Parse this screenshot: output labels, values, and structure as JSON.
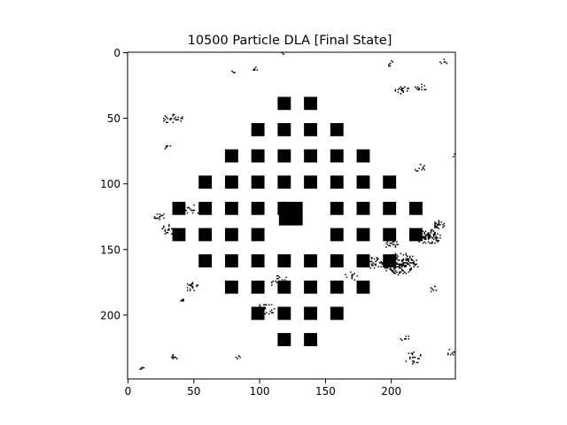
{
  "chart_data": {
    "type": "heatmap",
    "title": "10500 Particle DLA [Final State]",
    "xlabel": "",
    "ylabel": "",
    "xlim": [
      0,
      249
    ],
    "ylim": [
      249,
      0
    ],
    "x_ticks": [
      0,
      50,
      100,
      150,
      200
    ],
    "y_ticks": [
      0,
      50,
      100,
      150,
      200
    ],
    "x_tick_labels": [
      "0",
      "50",
      "100",
      "150",
      "200"
    ],
    "y_tick_labels": [
      "0",
      "50",
      "100",
      "150",
      "200"
    ],
    "colormap": [
      "#ffffff",
      "#000000"
    ],
    "grid": false,
    "seed_block": {
      "x": 124,
      "y": 123,
      "w": 18,
      "h": 18
    },
    "obstacle_block_size": 10,
    "obstacle_blocks": [
      [
        114,
        34
      ],
      [
        134,
        34
      ],
      [
        94,
        54
      ],
      [
        114,
        54
      ],
      [
        134,
        54
      ],
      [
        154,
        54
      ],
      [
        74,
        74
      ],
      [
        94,
        74
      ],
      [
        114,
        74
      ],
      [
        134,
        74
      ],
      [
        154,
        74
      ],
      [
        174,
        74
      ],
      [
        54,
        94
      ],
      [
        74,
        94
      ],
      [
        94,
        94
      ],
      [
        114,
        94
      ],
      [
        134,
        94
      ],
      [
        154,
        94
      ],
      [
        174,
        94
      ],
      [
        194,
        94
      ],
      [
        34,
        114
      ],
      [
        54,
        114
      ],
      [
        74,
        114
      ],
      [
        94,
        114
      ],
      [
        114,
        114
      ],
      [
        154,
        114
      ],
      [
        174,
        114
      ],
      [
        194,
        114
      ],
      [
        214,
        114
      ],
      [
        34,
        134
      ],
      [
        54,
        134
      ],
      [
        74,
        134
      ],
      [
        94,
        134
      ],
      [
        154,
        134
      ],
      [
        174,
        134
      ],
      [
        194,
        134
      ],
      [
        214,
        134
      ],
      [
        54,
        154
      ],
      [
        74,
        154
      ],
      [
        94,
        154
      ],
      [
        114,
        154
      ],
      [
        134,
        154
      ],
      [
        154,
        154
      ],
      [
        174,
        154
      ],
      [
        194,
        154
      ],
      [
        74,
        174
      ],
      [
        94,
        174
      ],
      [
        114,
        174
      ],
      [
        134,
        174
      ],
      [
        154,
        174
      ],
      [
        174,
        174
      ],
      [
        94,
        194
      ],
      [
        114,
        194
      ],
      [
        134,
        194
      ],
      [
        154,
        194
      ],
      [
        114,
        214
      ],
      [
        134,
        214
      ]
    ],
    "particle_clusters": [
      {
        "x": 207,
        "y": 161,
        "spread": 14,
        "count": 180
      },
      {
        "x": 228,
        "y": 140,
        "spread": 10,
        "count": 90
      },
      {
        "x": 186,
        "y": 160,
        "spread": 8,
        "count": 40
      },
      {
        "x": 236,
        "y": 131,
        "spread": 5,
        "count": 30
      },
      {
        "x": 115,
        "y": 175,
        "spread": 9,
        "count": 35
      },
      {
        "x": 104,
        "y": 195,
        "spread": 9,
        "count": 25
      },
      {
        "x": 100,
        "y": 178,
        "spread": 6,
        "count": 15
      },
      {
        "x": 48,
        "y": 178,
        "spread": 6,
        "count": 20
      },
      {
        "x": 42,
        "y": 188,
        "spread": 3,
        "count": 6
      },
      {
        "x": 30,
        "y": 135,
        "spread": 6,
        "count": 22
      },
      {
        "x": 48,
        "y": 120,
        "spread": 7,
        "count": 16
      },
      {
        "x": 24,
        "y": 125,
        "spread": 5,
        "count": 16
      },
      {
        "x": 33,
        "y": 50,
        "spread": 7,
        "count": 20
      },
      {
        "x": 40,
        "y": 50,
        "spread": 5,
        "count": 10
      },
      {
        "x": 208,
        "y": 28,
        "spread": 6,
        "count": 22
      },
      {
        "x": 222,
        "y": 27,
        "spread": 5,
        "count": 14
      },
      {
        "x": 199,
        "y": 8,
        "spread": 3,
        "count": 8
      },
      {
        "x": 240,
        "y": 7,
        "spread": 3,
        "count": 6
      },
      {
        "x": 96,
        "y": 13,
        "spread": 3,
        "count": 8
      },
      {
        "x": 35,
        "y": 232,
        "spread": 3,
        "count": 10
      },
      {
        "x": 10,
        "y": 240,
        "spread": 2,
        "count": 6
      },
      {
        "x": 216,
        "y": 232,
        "spread": 8,
        "count": 24
      },
      {
        "x": 210,
        "y": 218,
        "spread": 4,
        "count": 10
      },
      {
        "x": 178,
        "y": 95,
        "spread": 5,
        "count": 14
      },
      {
        "x": 222,
        "y": 88,
        "spread": 5,
        "count": 12
      },
      {
        "x": 200,
        "y": 145,
        "spread": 6,
        "count": 20
      },
      {
        "x": 245,
        "y": 228,
        "spread": 4,
        "count": 8
      },
      {
        "x": 30,
        "y": 72,
        "spread": 3,
        "count": 6
      },
      {
        "x": 80,
        "y": 15,
        "spread": 2,
        "count": 4
      },
      {
        "x": 84,
        "y": 232,
        "spread": 3,
        "count": 5
      },
      {
        "x": 170,
        "y": 170,
        "spread": 5,
        "count": 12
      },
      {
        "x": 232,
        "y": 180,
        "spread": 4,
        "count": 8
      },
      {
        "x": 248,
        "y": 78,
        "spread": 2,
        "count": 4
      },
      {
        "x": 118,
        "y": 0,
        "spread": 2,
        "count": 3
      }
    ]
  }
}
